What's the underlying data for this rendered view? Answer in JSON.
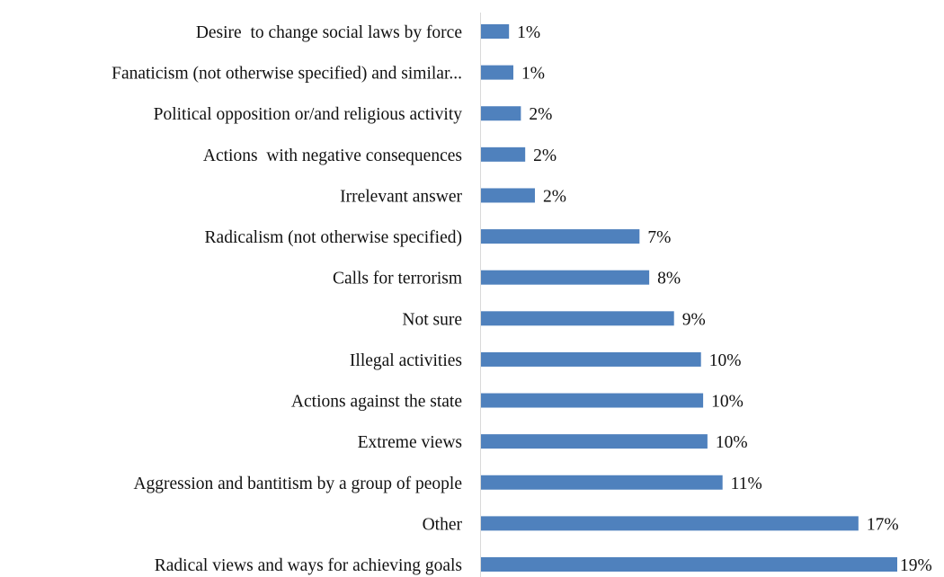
{
  "chart_data": {
    "type": "bar",
    "orientation": "horizontal",
    "categories": [
      "Desire  to change social laws by force",
      "Fanaticism (not otherwise specified) and similar...",
      "Political opposition or/and religious activity",
      "Actions  with negative consequences",
      "Irrelevant answer",
      "Radicalism (not otherwise specified)",
      "Calls for terrorism",
      "Not sure",
      "Illegal activities",
      "Actions against the state",
      "Extreme views",
      "Aggression and bantitism by a group of people",
      "Other",
      "Radical views and ways for achieving goals"
    ],
    "values": [
      1.3,
      1.5,
      1.85,
      2.05,
      2.5,
      7.35,
      7.8,
      8.95,
      10.2,
      10.3,
      10.5,
      11.2,
      17.5,
      19.3
    ],
    "value_labels": [
      "1%",
      "1%",
      "2%",
      "2%",
      "2%",
      "7%",
      "8%",
      "9%",
      "10%",
      "10%",
      "10%",
      "11%",
      "17%",
      "19%"
    ],
    "title": "",
    "xlabel": "",
    "ylabel": "",
    "xlim": [
      0,
      20
    ],
    "grid": false,
    "legend": "none",
    "bar_color": "#4f81bd",
    "axis_color": "#d9d9d9"
  }
}
